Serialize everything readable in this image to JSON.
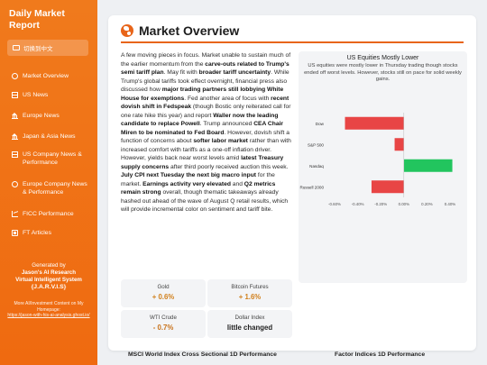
{
  "sidebar": {
    "title": "Daily Market Report",
    "lang_button": "切换到中文",
    "nav": [
      {
        "label": "Market Overview",
        "icon": "globe-icon"
      },
      {
        "label": "US News",
        "icon": "flag-icon"
      },
      {
        "label": "Europe News",
        "icon": "bank-icon"
      },
      {
        "label": "Japan & Asia News",
        "icon": "bank-icon"
      },
      {
        "label": "US Company News & Performance",
        "icon": "flag-icon"
      },
      {
        "label": "Europe Company News & Performance",
        "icon": "globe-icon"
      },
      {
        "label": "FICC Performance",
        "icon": "chart-icon"
      },
      {
        "label": "FT Articles",
        "icon": "news-icon"
      }
    ],
    "generated_by": "Generated by",
    "generator_line1": "Jason's AI Research",
    "generator_line2": "Virtual Intelligent System",
    "generator_name": "{J.A.R.V.I.S}",
    "more_text": "More AI/Investment Content on My Homepage:",
    "more_link": "https://jason-with-his-ai-analysis.ghost.io/"
  },
  "main": {
    "title": "Market Overview",
    "body_html": "A few moving pieces in focus. Market unable to sustain much of the earlier momentum from the <b>carve-outs related to Trump's semi tariff plan</b>. May fit with <b>broader tariff uncertainty</b>. While Trump's global tariffs took effect overnight, financial press also discussed how <b>major trading partners still lobbying White House for exemptions</b>. Fed another area of focus with <b>recent dovish shift in Fedspeak</b> (though Bostic only reiterated call for one rate hike this year) and report <b>Waller now the leading candidate to replace Powell</b>. Trump announced <b>CEA Chair Miren to be nominated to Fed Board</b>. However, dovish shift a function of concerns about <b>softer labor market</b> rather than with increased comfort with tariffs as a one-off inflation driver. However, yields back near worst levels amid <b>latest Treasury supply concerns</b> after third poorly received auction this week. <b>July CPI next Tuesday the next big macro input</b> for the market. <b>Earnings activity very elevated</b> and <b>Q2 metrics remain strong</b> overall, though thematic takeaways already hashed out ahead of the wave of August Q retail results, which will provide incremental color on sentiment and tariff bite.",
    "tiles": [
      {
        "label": "Gold",
        "value": "+ 0.6%",
        "trend": "up"
      },
      {
        "label": "Bitcoin Futures",
        "value": "+ 1.6%",
        "trend": "up"
      },
      {
        "label": "WTI Crude",
        "value": "- 0.7%",
        "trend": "down"
      },
      {
        "label": "Dollar Index",
        "value": "little changed",
        "trend": "neutral"
      }
    ],
    "section_left": "MSCI World Index Cross Sectional 1D Performance",
    "section_right": "Factor Indices 1D Performance"
  },
  "colors": {
    "accent": "#e8651a",
    "bar_neg": "#e84545",
    "bar_pos": "#22c55e"
  },
  "chart_data": {
    "type": "bar",
    "orientation": "horizontal",
    "title": "US Equities Mostly Lower",
    "subtitle": "US equities were mostly lower in Thursday trading though stocks ended off worst levels. However, stocks still on pace for solid weekly gains.",
    "categories": [
      "Dow",
      "S&P 500",
      "Nasdaq",
      "Russell 2000"
    ],
    "values": [
      -0.51,
      -0.08,
      0.42,
      -0.28
    ],
    "xlim": [
      -0.6,
      0.4
    ],
    "xticks": [
      "-0.60%",
      "-0.40%",
      "-0.20%",
      "0.00%",
      "0.20%",
      "0.40%"
    ],
    "grid": false
  }
}
